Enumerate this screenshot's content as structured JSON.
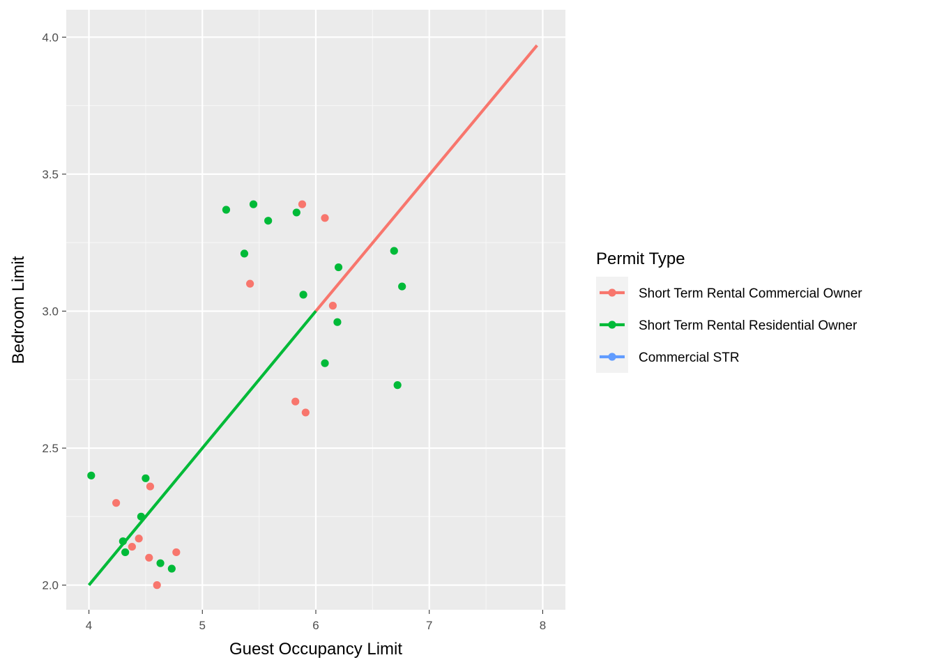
{
  "chart_data": {
    "type": "scatter",
    "xlabel": "Guest Occupancy Limit",
    "ylabel": "Bedroom Limit",
    "xlim": [
      3.8,
      8.2
    ],
    "ylim": [
      1.91,
      4.1
    ],
    "x_ticks": [
      "4",
      "5",
      "6",
      "7",
      "8"
    ],
    "y_ticks": [
      "2.0",
      "2.5",
      "3.0",
      "3.5",
      "4.0"
    ],
    "grid": true,
    "legend": {
      "title": "Permit Type",
      "position": "right"
    },
    "series": [
      {
        "name": "Short Term Rental Commercial Owner",
        "color": "#F8766D",
        "points": [
          {
            "x": 4.24,
            "y": 2.3
          },
          {
            "x": 4.54,
            "y": 2.36
          },
          {
            "x": 4.44,
            "y": 2.17
          },
          {
            "x": 4.38,
            "y": 2.14
          },
          {
            "x": 4.53,
            "y": 2.1
          },
          {
            "x": 4.77,
            "y": 2.12
          },
          {
            "x": 4.6,
            "y": 2.0
          },
          {
            "x": 5.88,
            "y": 3.39
          },
          {
            "x": 6.08,
            "y": 3.34
          },
          {
            "x": 5.42,
            "y": 3.1
          },
          {
            "x": 6.15,
            "y": 3.02
          },
          {
            "x": 5.82,
            "y": 2.67
          },
          {
            "x": 5.91,
            "y": 2.63
          }
        ],
        "line": {
          "x": [
            6,
            7.95
          ],
          "y": [
            3,
            3.97
          ]
        }
      },
      {
        "name": "Short Term Rental Residential Owner",
        "color": "#00BA38",
        "points": [
          {
            "x": 4.02,
            "y": 2.4
          },
          {
            "x": 4.5,
            "y": 2.39
          },
          {
            "x": 4.46,
            "y": 2.25
          },
          {
            "x": 4.3,
            "y": 2.16
          },
          {
            "x": 4.32,
            "y": 2.12
          },
          {
            "x": 4.63,
            "y": 2.08
          },
          {
            "x": 4.73,
            "y": 2.06
          },
          {
            "x": 5.21,
            "y": 3.37
          },
          {
            "x": 5.45,
            "y": 3.39
          },
          {
            "x": 5.58,
            "y": 3.33
          },
          {
            "x": 5.83,
            "y": 3.36
          },
          {
            "x": 5.37,
            "y": 3.21
          },
          {
            "x": 6.69,
            "y": 3.22
          },
          {
            "x": 6.2,
            "y": 3.16
          },
          {
            "x": 6.76,
            "y": 3.09
          },
          {
            "x": 5.89,
            "y": 3.06
          },
          {
            "x": 6.19,
            "y": 2.96
          },
          {
            "x": 6.08,
            "y": 2.81
          },
          {
            "x": 6.72,
            "y": 2.73
          }
        ],
        "line": {
          "x": [
            4,
            6
          ],
          "y": [
            2,
            3
          ]
        }
      },
      {
        "name": "Commercial STR",
        "color": "#619CFF",
        "points": [],
        "line": null
      }
    ]
  }
}
